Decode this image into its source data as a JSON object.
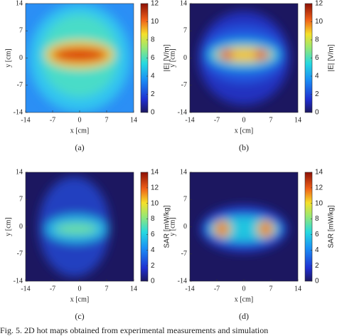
{
  "panels": [
    {
      "label": "(a)",
      "xlabel": "x [cm]",
      "ylabel": "y [cm]",
      "xlim": [
        -14,
        14
      ],
      "ylim": [
        -14,
        14
      ],
      "xticks": [
        -14,
        -7,
        0,
        7,
        14
      ],
      "yticks": [
        -14,
        -7,
        0,
        7,
        14
      ],
      "colorbar": {
        "label": "|E| [V/m]",
        "lim": [
          0,
          12
        ],
        "ticks": [
          0,
          2,
          4,
          6,
          8,
          10,
          12
        ]
      }
    },
    {
      "label": "(b)",
      "xlabel": "x [cm]",
      "ylabel": "y [cm]",
      "xlim": [
        -14,
        14
      ],
      "ylim": [
        -14,
        14
      ],
      "xticks": [
        -14,
        -7,
        0,
        7,
        14
      ],
      "yticks": [
        -14,
        -7,
        0,
        7,
        14
      ],
      "colorbar": {
        "label": "|E| [V/m]",
        "lim": [
          0,
          12
        ],
        "ticks": [
          0,
          2,
          4,
          6,
          8,
          10,
          12
        ]
      }
    },
    {
      "label": "(c)",
      "xlabel": "x [cm]",
      "ylabel": "y [cm]",
      "xlim": [
        -14,
        14
      ],
      "ylim": [
        -14,
        14
      ],
      "xticks": [
        -14,
        -7,
        0,
        7,
        14
      ],
      "yticks": [
        -14,
        -7,
        0,
        7,
        14
      ],
      "colorbar": {
        "label": "SAR [mW/kg]",
        "lim": [
          0,
          14
        ],
        "ticks": [
          0,
          2,
          4,
          6,
          8,
          10,
          12,
          14
        ]
      }
    },
    {
      "label": "(d)",
      "xlabel": "x [cm]",
      "ylabel": "y [cm]",
      "xlim": [
        -14,
        14
      ],
      "ylim": [
        -14,
        14
      ],
      "xticks": [
        -14,
        -7,
        0,
        7,
        14
      ],
      "yticks": [
        -14,
        -7,
        0,
        7,
        14
      ],
      "colorbar": {
        "label": "SAR [mW/kg]",
        "lim": [
          0,
          14
        ],
        "ticks": [
          0,
          2,
          4,
          6,
          8,
          10,
          12,
          14
        ]
      }
    }
  ],
  "caption": "Fig. 5. 2D hot maps obtained from experimental measurements and simulation"
}
